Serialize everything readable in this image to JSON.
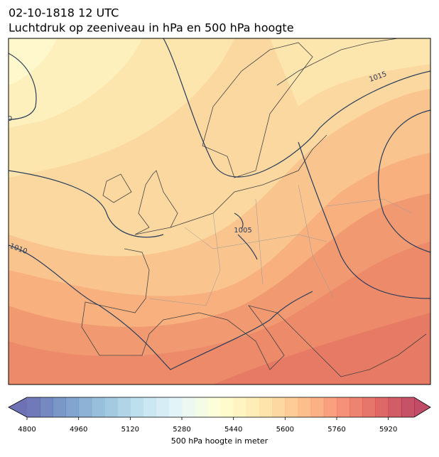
{
  "header": {
    "title": "02-10-1818 12 UTC",
    "subtitle": "Luchtdruk op zeeniveau in hPa en 500 hPa hoogte"
  },
  "map": {
    "contour_labels": [
      "1015",
      "1005",
      "1010",
      "0"
    ]
  },
  "colorbar": {
    "label": "500 hPa hoogte in meter",
    "range": [
      4800,
      6000
    ],
    "step": 40,
    "ticks": [
      4800,
      4960,
      5120,
      5280,
      5440,
      5600,
      5760,
      5920
    ],
    "colormap": [
      "#313695",
      "#4575b4",
      "#74add1",
      "#abd9e9",
      "#e0f3f8",
      "#ffffbf",
      "#fee090",
      "#fdae61",
      "#f46d43",
      "#d73027",
      "#a50026"
    ],
    "opacity": 0.7
  }
}
